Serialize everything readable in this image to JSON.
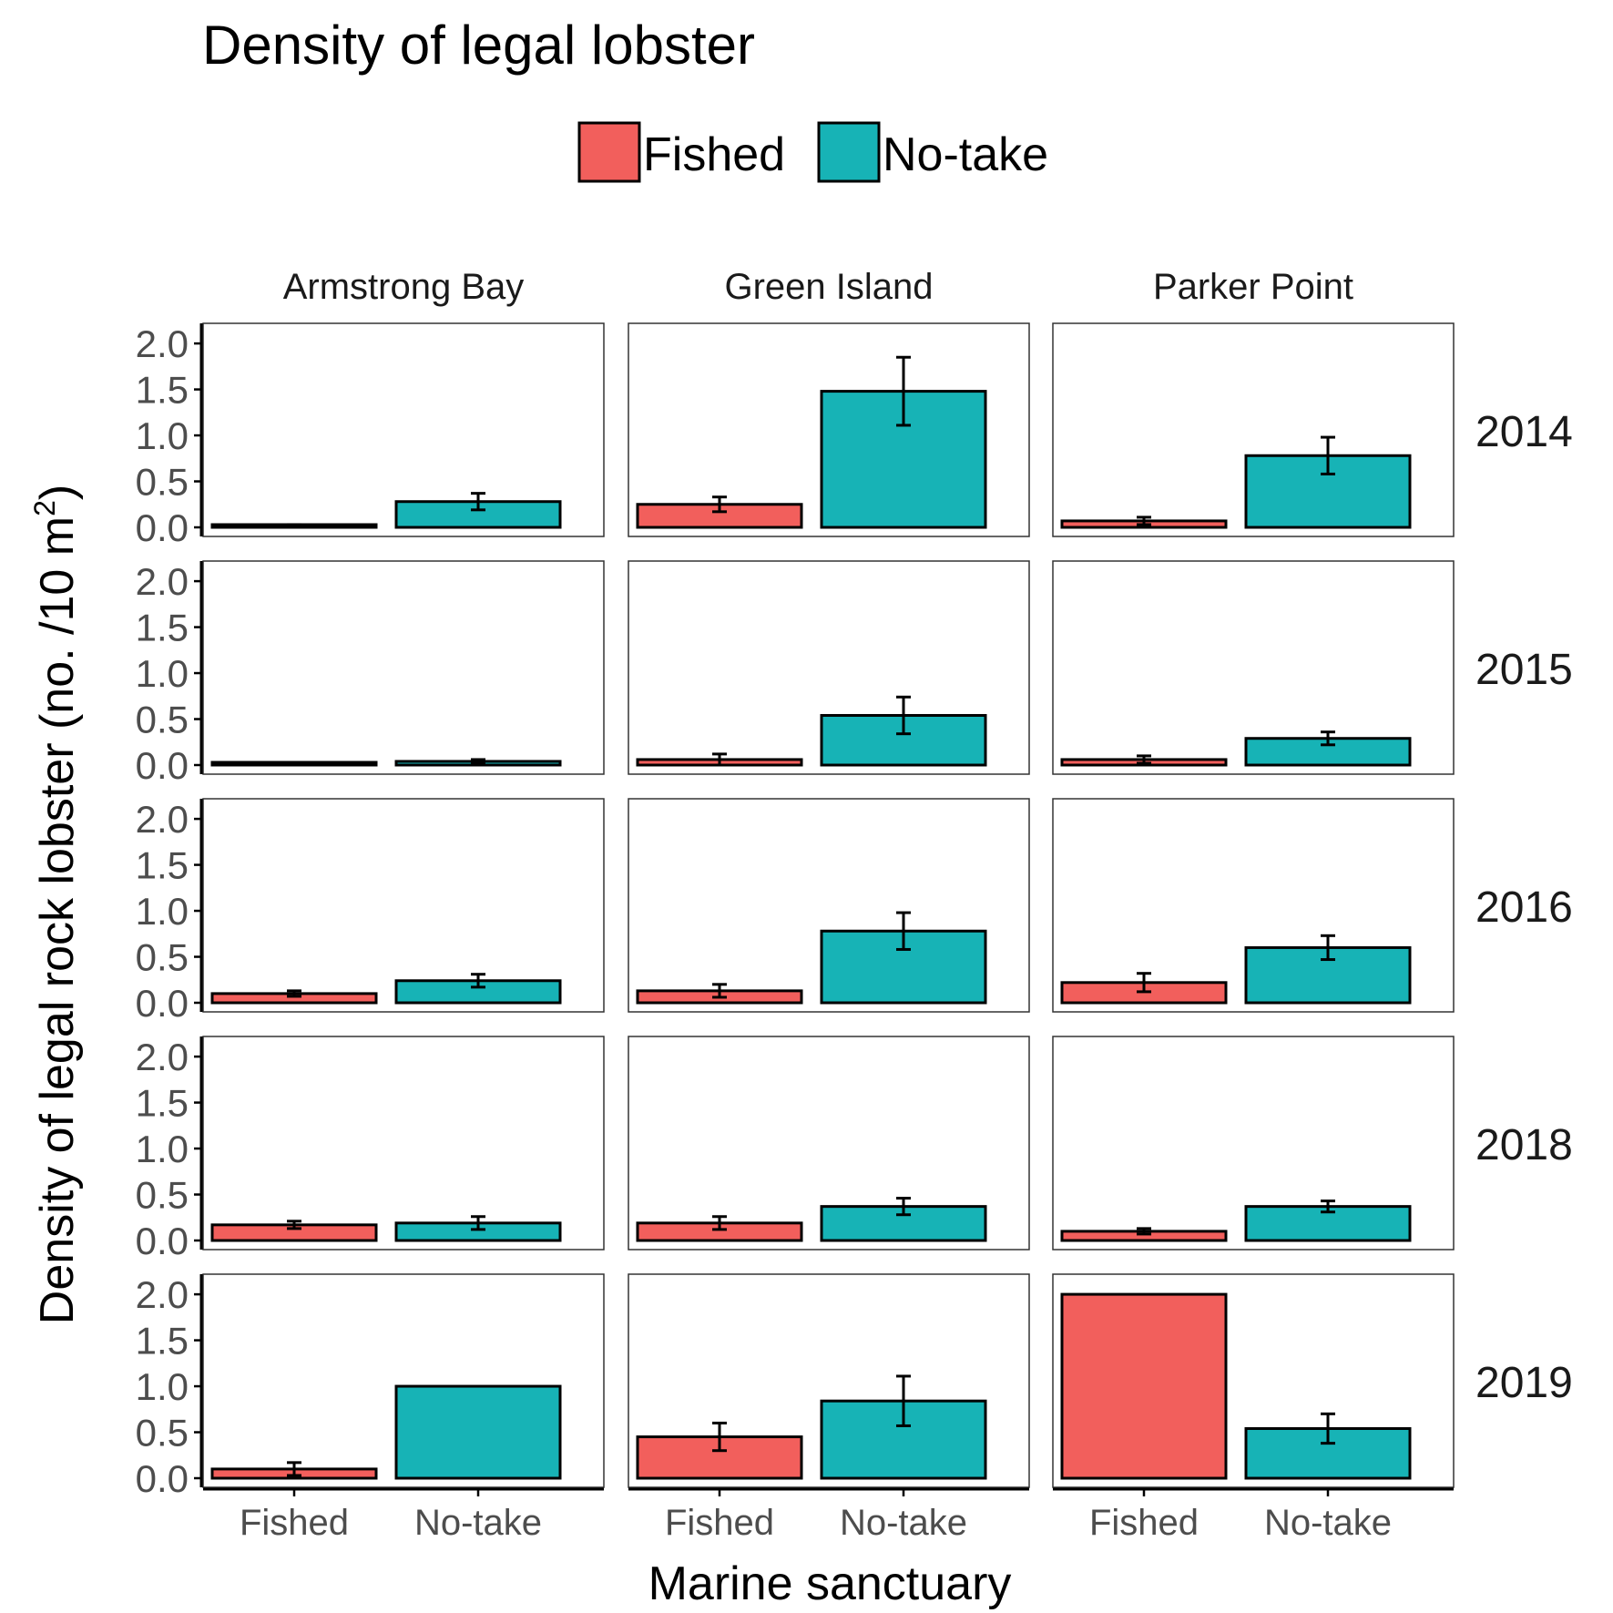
{
  "chart_data": {
    "type": "bar",
    "title": "Density of legal lobster",
    "xlabel": "Marine sanctuary",
    "ylabel_prefix": "Density of legal rock lobster (no. /10 m",
    "ylabel_sup": "2",
    "ylabel_suffix": ")",
    "ylim": [
      0,
      2.1
    ],
    "yticks": [
      "0.0",
      "0.5",
      "1.0",
      "1.5",
      "2.0"
    ],
    "ytick_values": [
      0,
      0.5,
      1.0,
      1.5,
      2.0
    ],
    "categories": [
      "Fished",
      "No-take"
    ],
    "legend": {
      "position": "top",
      "entries": [
        {
          "label": "Fished",
          "color": "#F25F5C"
        },
        {
          "label": "No-take",
          "color": "#17B3B6"
        }
      ]
    },
    "grid": false,
    "facet_columns": [
      "Armstrong Bay",
      "Green Island",
      "Parker Point"
    ],
    "facet_rows": [
      "2014",
      "2015",
      "2016",
      "2018",
      "2019"
    ],
    "panels": [
      {
        "site": "Armstrong Bay",
        "year": "2014",
        "values": [
          0.02,
          0.28
        ],
        "errors": [
          0.01,
          0.09
        ]
      },
      {
        "site": "Green Island",
        "year": "2014",
        "values": [
          0.25,
          1.48
        ],
        "errors": [
          0.08,
          0.37
        ]
      },
      {
        "site": "Parker Point",
        "year": "2014",
        "values": [
          0.07,
          0.78
        ],
        "errors": [
          0.04,
          0.2
        ]
      },
      {
        "site": "Armstrong Bay",
        "year": "2015",
        "values": [
          0.01,
          0.04
        ],
        "errors": [
          0.0,
          0.02
        ]
      },
      {
        "site": "Green Island",
        "year": "2015",
        "values": [
          0.06,
          0.54
        ],
        "errors": [
          0.06,
          0.2
        ]
      },
      {
        "site": "Parker Point",
        "year": "2015",
        "values": [
          0.06,
          0.29
        ],
        "errors": [
          0.04,
          0.07
        ]
      },
      {
        "site": "Armstrong Bay",
        "year": "2016",
        "values": [
          0.1,
          0.24
        ],
        "errors": [
          0.03,
          0.07
        ]
      },
      {
        "site": "Green Island",
        "year": "2016",
        "values": [
          0.13,
          0.78
        ],
        "errors": [
          0.07,
          0.2
        ]
      },
      {
        "site": "Parker Point",
        "year": "2016",
        "values": [
          0.22,
          0.6
        ],
        "errors": [
          0.1,
          0.13
        ]
      },
      {
        "site": "Armstrong Bay",
        "year": "2018",
        "values": [
          0.17,
          0.19
        ],
        "errors": [
          0.04,
          0.07
        ]
      },
      {
        "site": "Green Island",
        "year": "2018",
        "values": [
          0.19,
          0.37
        ],
        "errors": [
          0.07,
          0.09
        ]
      },
      {
        "site": "Parker Point",
        "year": "2018",
        "values": [
          0.1,
          0.37
        ],
        "errors": [
          0.03,
          0.06
        ]
      },
      {
        "site": "Armstrong Bay",
        "year": "2019",
        "values": [
          0.1,
          1.0
        ],
        "errors": [
          0.07,
          0.0
        ]
      },
      {
        "site": "Green Island",
        "year": "2019",
        "values": [
          0.45,
          0.84
        ],
        "errors": [
          0.15,
          0.27
        ]
      },
      {
        "site": "Parker Point",
        "year": "2019",
        "values": [
          2.0,
          0.54
        ],
        "errors": [
          0.0,
          0.16
        ]
      }
    ]
  }
}
